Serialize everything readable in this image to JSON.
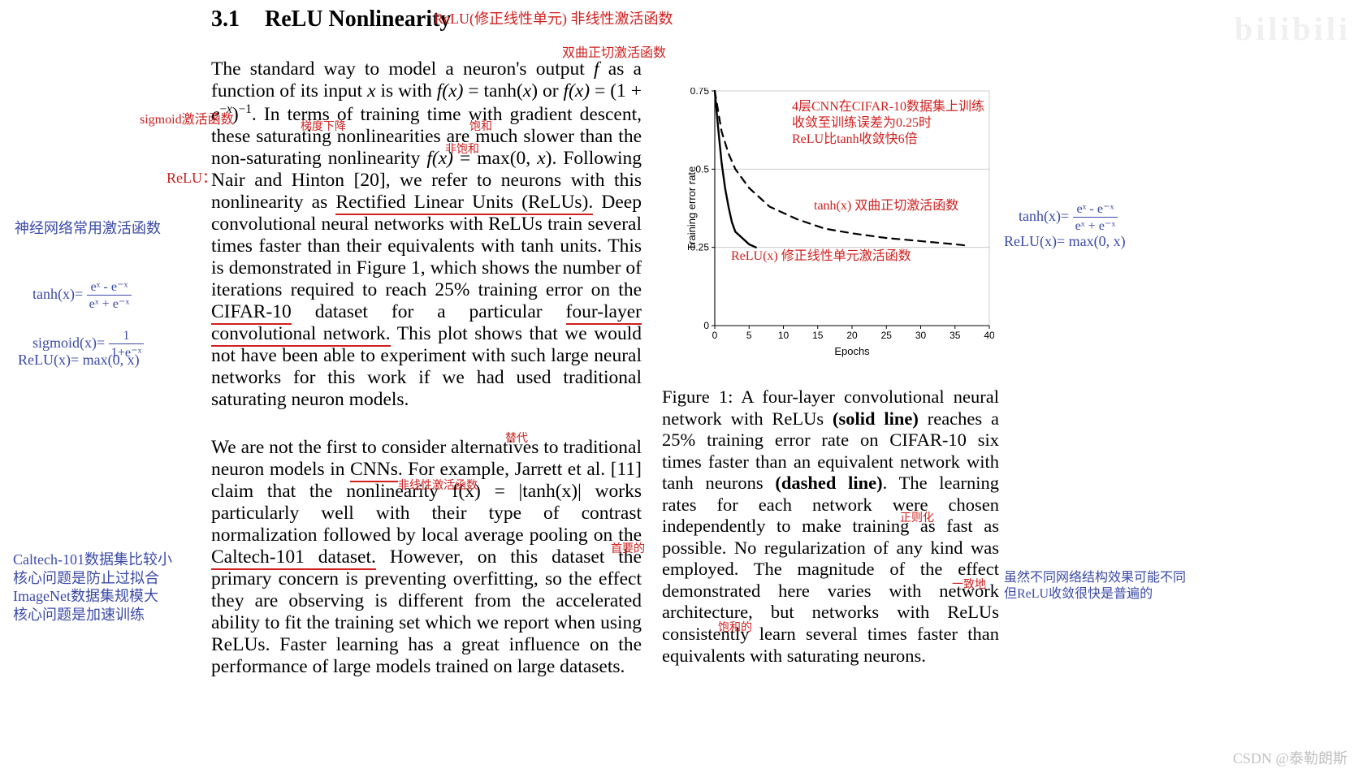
{
  "heading": {
    "num": "3.1",
    "title": "ReLU Nonlinearity"
  },
  "para1_html": "The standard way to model a neuron's output <span class='math'>f</span> as a function of its input <span class='math'>x</span> is with <span class='math'>f(x)</span> = tanh(<span class='math'>x</span>) or <span class='math'>f(x)</span> = (1 + <span class='math'>e</span><sup>−<span class='math'>x</span></sup>)<sup>−1</sup>. In terms of training time with gradient descent, these saturating nonlinearities are much slower than the non-saturating nonlinearity <span class='math'>f(x)</span> = max(0, <span class='math'>x</span>). Following Nair and Hinton [20], we refer to neurons with this nonlinearity as <span class='underline-red'>Rectified Linear Units (ReLUs).</span> Deep convolutional neural networks with ReLUs train several times faster than their equivalents with tanh units. This is demonstrated in Figure 1, which shows the number of iterations required to reach 25% training error on the <span class='underline-red'>CIFAR-10</span> dataset for a particular <span class='underline-red'>four-layer convolutional network.</span> This plot shows that we would not have been able to experiment with such large neural networks for this work if we had used traditional saturating neuron models.",
  "para2_html": "We are not the first to consider alternatives to traditional neuron models in <span class='underline-red'>CNNs</span>. For example, Jarrett et al. [11] claim that the nonlinearity <span class='math'>f(x)</span> = |tanh(<span class='math'>x</span>)| works particularly well with their type of contrast normalization followed by local average pooling on the <span class='underline-red'>Caltech-101 dataset.</span> However, on this dataset the primary concern is preventing overfitting, so the effect they are observing is different from the accelerated ability to fit the training set which we report when using ReLUs. Faster learning has a great influence on the performance of large models trained on large datasets.",
  "figcap_html": "Figure 1: A four-layer convolutional neural network with ReLUs <b>(solid line)</b> reaches a 25% training error rate on CIFAR-10 six times faster than an equivalent network with tanh neurons <b>(dashed line)</b>. The learning rates for each network were chosen independently to make training as fast as possible. No regularization of any kind was employed. The magnitude of the effect demonstrated here varies with network architecture, but networks with ReLUs consistently learn several times faster than equivalents with saturating neurons.",
  "chart": {
    "type": "line",
    "xlabel": "Epochs",
    "ylabel": "Training error rate",
    "xlim": [
      0,
      40
    ],
    "ylim": [
      0,
      0.75
    ],
    "xtick_step": 5,
    "ytick_step": 0.25,
    "background_color": "#ffffff",
    "grid_color": "#cccccc",
    "axis_color": "#000000",
    "axis_width": 1.1,
    "label_fontsize": 13,
    "tick_fontsize": 12,
    "series": [
      {
        "name": "ReLU",
        "style": "solid",
        "color": "#000000",
        "line_width": 2.4,
        "x": [
          0,
          0.5,
          1,
          1.5,
          2,
          2.5,
          3,
          4,
          5,
          6
        ],
        "y": [
          0.75,
          0.63,
          0.52,
          0.44,
          0.38,
          0.33,
          0.3,
          0.28,
          0.26,
          0.25
        ]
      },
      {
        "name": "tanh",
        "style": "dashed",
        "dash": [
          9,
          7
        ],
        "color": "#000000",
        "line_width": 2.2,
        "x": [
          0,
          1,
          2,
          3,
          5,
          8,
          12,
          16,
          20,
          25,
          30,
          35,
          37
        ],
        "y": [
          0.75,
          0.62,
          0.55,
          0.5,
          0.44,
          0.38,
          0.34,
          0.31,
          0.295,
          0.28,
          0.27,
          0.26,
          0.255
        ]
      }
    ],
    "right_border": true,
    "top_grid_line": true
  },
  "annotations": {
    "title_side": "ReLU(修正线性单元) 非线性激活函数",
    "tanh_top": "双曲正切激活函数",
    "sigmoid_left": "sigmoid激活函数",
    "grad_descent": "梯度下降",
    "saturated": "饱和",
    "nonsat": "非饱和",
    "relu_left": "ReLU：",
    "nn_common": "神经网络常用激活函数",
    "tanh_eq_left": "tanh(x)= ",
    "sigmoid_eq_left": "sigmoid(x)= ",
    "relu_eq_left": "ReLU(x)= max(0, x)",
    "frac_top": "eˣ - e⁻ˣ",
    "frac_bot": "eˣ + e⁻ˣ",
    "sig_frac_top": "1",
    "sig_frac_bot": "1+e⁻ˣ",
    "caltech_block": "Caltech-101数据集比较小\n核心问题是防止过拟合\nImageNet数据集规模大\n核心问题是加速训练",
    "replace": "替代",
    "nonlin_cn": "非线性激活函数",
    "primary": "首要的",
    "regular": "正则化",
    "consist": "一致地",
    "saturating2": "饱和的",
    "chart_note1": "4层CNN在CIFAR-10数据集上训练\n收敛至训练误差为0.25时\nReLU比tanh收敛快6倍",
    "chart_tanh": "tanh(x) 双曲正切激活函数",
    "chart_relu": "ReLU(x) 修正线性单元激活函数",
    "right_tanh_eq": "tanh(x)= ",
    "right_relu_eq": "ReLU(x)= max(0, x)",
    "right_note_blue": "虽然不同网络结构效果可能不同\n但ReLU收敛很快是普遍的",
    "watermark_right": "bilibili",
    "watermark_bottom": "CSDN @泰勒朗斯"
  }
}
